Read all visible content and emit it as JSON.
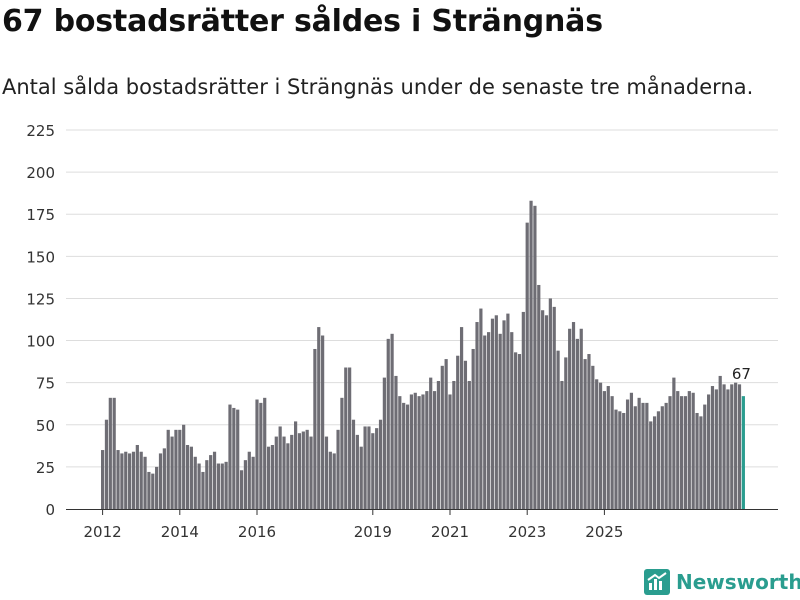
{
  "title": "67 bostadsrätter såldes i Strängnäs",
  "subtitle": "Antal sålda bostadsrätter i Strängnäs under de senaste tre månaderna.",
  "brand": {
    "name": "Newsworthy",
    "icon": "newsworthy-logo-icon"
  },
  "colors": {
    "bar": "#6e6d74",
    "highlight": "#2a9d8f",
    "grid": "#dddddd",
    "axis": "#333333"
  },
  "chart_data": {
    "type": "bar",
    "title": "67 bostadsrätter såldes i Strängnäs",
    "xlabel": "",
    "ylabel": "",
    "ylim": [
      0,
      225
    ],
    "y_ticks": [
      0,
      25,
      50,
      75,
      100,
      125,
      150,
      175,
      200,
      225
    ],
    "x_tick_labels": [
      "2012",
      "2014",
      "2016",
      "2019",
      "2021",
      "2023",
      "2025"
    ],
    "x_tick_indices": [
      0,
      20,
      40,
      70,
      90,
      110,
      130
    ],
    "grid": true,
    "highlight_last": true,
    "last_label": "67",
    "values": [
      35,
      53,
      66,
      66,
      35,
      33,
      34,
      33,
      34,
      38,
      34,
      31,
      22,
      21,
      25,
      33,
      36,
      47,
      43,
      47,
      47,
      50,
      38,
      37,
      31,
      27,
      22,
      29,
      32,
      34,
      27,
      27,
      28,
      62,
      60,
      59,
      23,
      29,
      34,
      31,
      65,
      63,
      66,
      37,
      38,
      43,
      49,
      43,
      39,
      44,
      52,
      45,
      46,
      47,
      43,
      95,
      108,
      103,
      43,
      34,
      33,
      47,
      66,
      84,
      84,
      53,
      44,
      37,
      49,
      49,
      45,
      48,
      53,
      78,
      101,
      104,
      79,
      67,
      63,
      62,
      68,
      69,
      67,
      68,
      70,
      78,
      70,
      76,
      85,
      89,
      68,
      76,
      91,
      108,
      88,
      76,
      95,
      111,
      119,
      103,
      105,
      113,
      115,
      104,
      112,
      116,
      105,
      93,
      92,
      117,
      170,
      183,
      180,
      133,
      118,
      115,
      125,
      120,
      94,
      76,
      90,
      107,
      111,
      101,
      107,
      89,
      92,
      85,
      77,
      75,
      70,
      73,
      67,
      59,
      58,
      57,
      65,
      69,
      61,
      66,
      63,
      63,
      52,
      55,
      58,
      61,
      63,
      67,
      78,
      70,
      67,
      67,
      70,
      69,
      57,
      55,
      62,
      68,
      73,
      71,
      79,
      74,
      71,
      74,
      75,
      74,
      67
    ]
  }
}
